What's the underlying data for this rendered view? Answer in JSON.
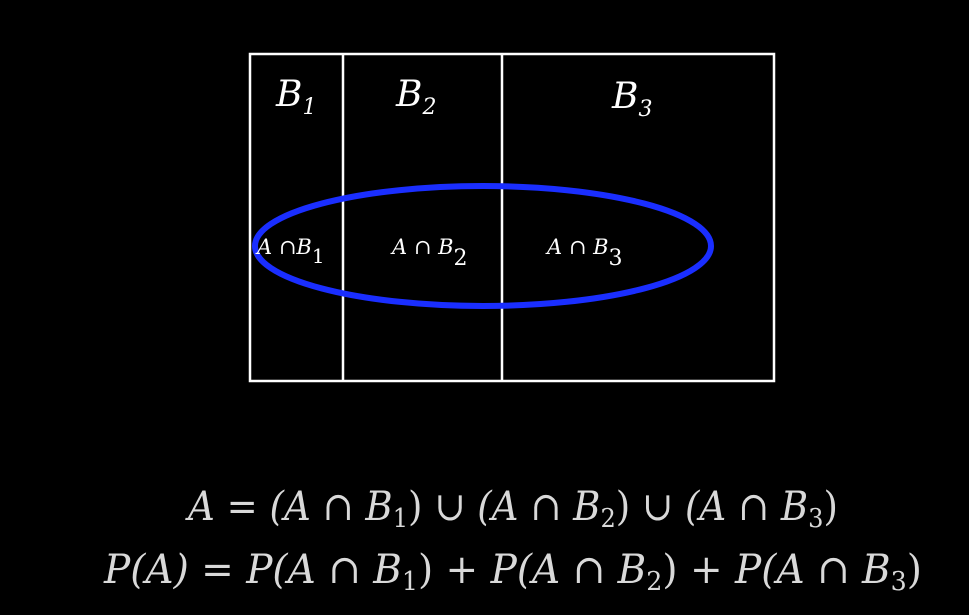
{
  "diagram": {
    "partitions": [
      {
        "symbol": "B",
        "index": "1"
      },
      {
        "symbol": "B",
        "index": "2"
      },
      {
        "symbol": "B",
        "index": "3"
      }
    ],
    "intersections": [
      {
        "text": "A ∩B",
        "index": "1"
      },
      {
        "text": "A ∩ B",
        "index": "2"
      },
      {
        "text": "A ∩ B",
        "index": "3"
      }
    ],
    "colors": {
      "background": "#000000",
      "frame": "#ffffff",
      "event_ellipse": "#1a2eff",
      "equation_text": "#d9d9d9"
    }
  },
  "equations": {
    "line1": {
      "lhs": "A",
      "eq": "=",
      "t1_open": "(A ∩ B",
      "t1_sub": "1",
      "t1_close": ")",
      "u1": " ∪ ",
      "t2_open": "(A ∩ B",
      "t2_sub": "2",
      "t2_close": ")",
      "u2": " ∪ ",
      "t3_open": "(A ∩ B",
      "t3_sub": "3",
      "t3_close": ")"
    },
    "line2": {
      "lhs": "P(A)",
      "eq": "=",
      "t1_open": "P(A ∩ B",
      "t1_sub": "1",
      "t1_close": ")",
      "p1": " + ",
      "t2_open": "P(A ∩ B",
      "t2_sub": "2",
      "t2_close": ")",
      "p2": " + ",
      "t3_open": "P(A ∩ B",
      "t3_sub": "3",
      "t3_close": ")"
    }
  }
}
